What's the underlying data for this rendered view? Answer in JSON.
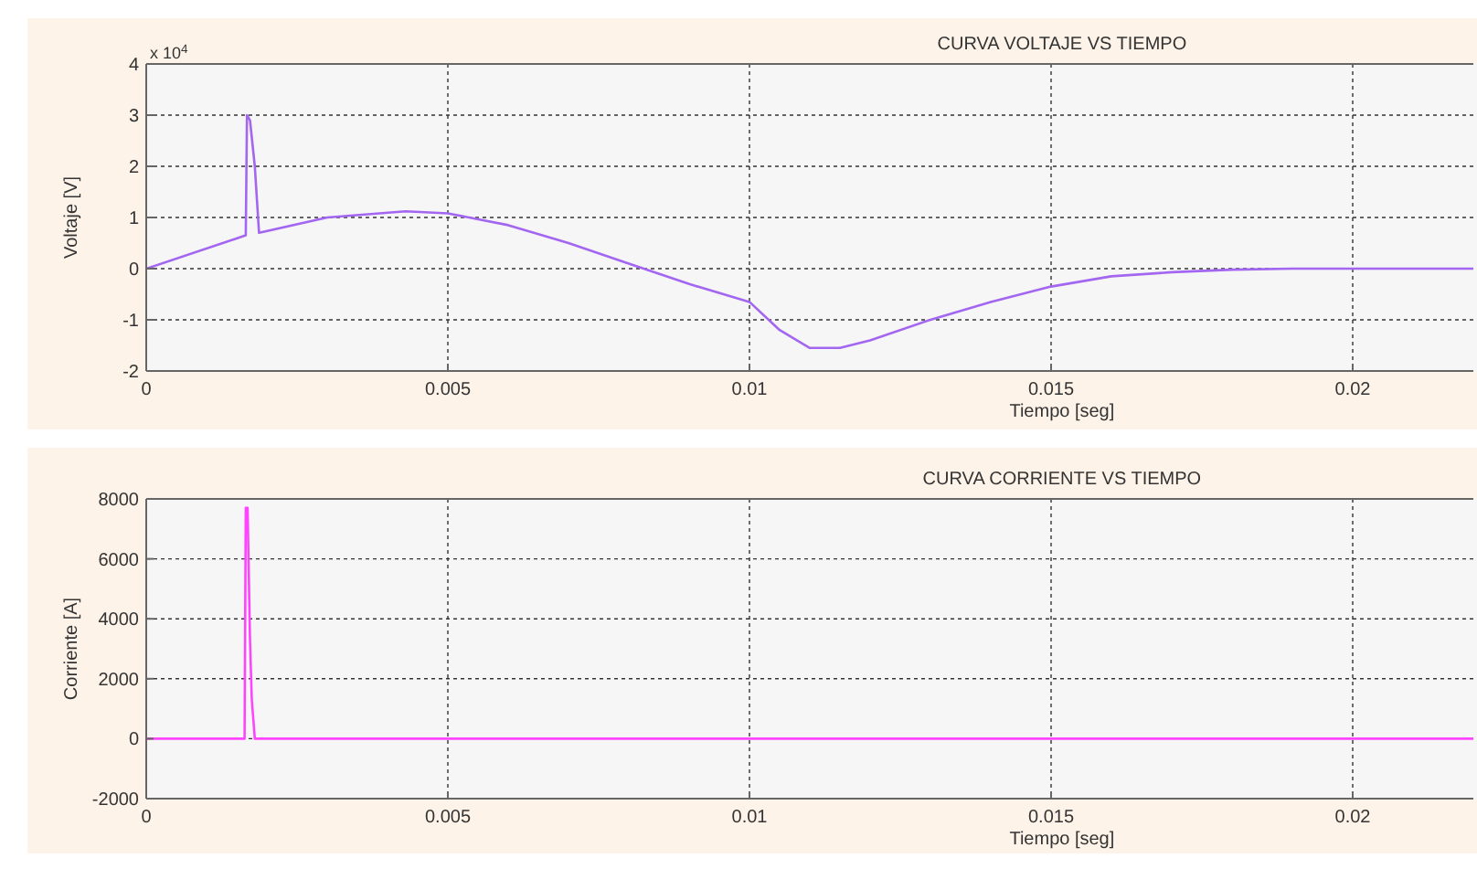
{
  "chart_data": [
    {
      "type": "line",
      "title": "CURVA VOLTAJE VS TIEMPO",
      "xlabel": "Tiempo [seg]",
      "ylabel": "Voltaje [V]",
      "annotations": [
        "x 10$^{4}$"
      ],
      "series": [
        {
          "color": "#a366f0",
          "x": [
            0,
            0.00165,
            0.00167,
            0.00172,
            0.0018,
            0.00187,
            0.003,
            0.0043,
            0.005,
            0.006,
            0.007,
            0.008,
            0.009,
            0.01,
            0.0105,
            0.011,
            0.0115,
            0.012,
            0.013,
            0.014,
            0.015,
            0.016,
            0.017,
            0.018,
            0.019,
            0.022
          ],
          "values": [
            0,
            0.65,
            3.0,
            2.9,
            2.0,
            0.7,
            1.0,
            1.12,
            1.08,
            0.85,
            0.5,
            0.1,
            -0.3,
            -0.65,
            -1.2,
            -1.55,
            -1.55,
            -1.4,
            -1.0,
            -0.65,
            -0.35,
            -0.15,
            -0.07,
            -0.02,
            0,
            0
          ]
        }
      ],
      "xlim": [
        0,
        0.022
      ],
      "xticks": [
        0,
        0.005,
        0.01,
        0.015,
        0.02
      ],
      "ylim": [
        -2,
        4
      ],
      "yticks": [
        -2,
        -1,
        0,
        1,
        2,
        3,
        4
      ],
      "grid": true,
      "line_style": "solid",
      "marker": "none"
    },
    {
      "type": "line",
      "title": "CURVA CORRIENTE VS TIEMPO",
      "xlabel": "Tiempo [seg]",
      "ylabel": "Corriente [A]",
      "series": [
        {
          "color": "#ff44ff",
          "x": [
            0,
            0.00163,
            0.00165,
            0.00168,
            0.0017,
            0.00172,
            0.00175,
            0.0018,
            0.022
          ],
          "values": [
            0,
            0,
            7700,
            7700,
            5500,
            3300,
            1300,
            0,
            0
          ]
        }
      ],
      "xlim": [
        0,
        0.022
      ],
      "xticks": [
        0,
        0.005,
        0.01,
        0.015,
        0.02
      ],
      "ylim": [
        -2000,
        8000
      ],
      "yticks": [
        -2000,
        0,
        2000,
        4000,
        6000,
        8000
      ],
      "grid": true,
      "line_style": "solid",
      "marker": "none"
    }
  ]
}
